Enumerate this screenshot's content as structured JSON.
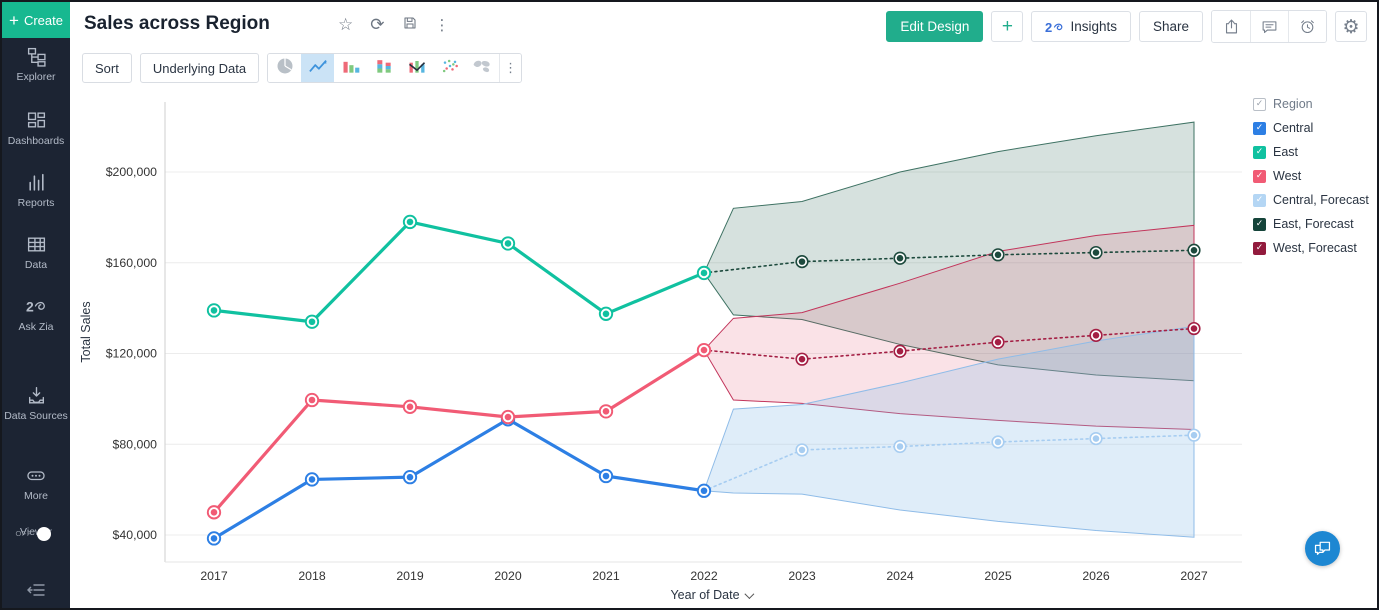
{
  "window": {
    "title": "Sales across Region"
  },
  "sidebar": {
    "create": {
      "label": "Create"
    },
    "items": [
      {
        "id": "explorer",
        "label": "Explorer"
      },
      {
        "id": "dashboards",
        "label": "Dashboards"
      },
      {
        "id": "reports",
        "label": "Reports"
      },
      {
        "id": "data",
        "label": "Data"
      },
      {
        "id": "ask-zia",
        "label": "Ask Zia"
      },
      {
        "id": "data-sources",
        "label": "Data Sources"
      },
      {
        "id": "more",
        "label": "More"
      }
    ],
    "viewer": {
      "label": "Viewer",
      "state": "OFF"
    }
  },
  "header": {
    "title": "Sales across Region",
    "title_icons": [
      "star",
      "refresh",
      "save",
      "kebab"
    ],
    "actions": {
      "edit_design": "Edit Design",
      "add": "+",
      "insights": "Insights",
      "share": "Share",
      "icon_buttons": [
        "export",
        "comment",
        "alarm",
        "settings"
      ]
    }
  },
  "toolbar": {
    "sort": "Sort",
    "underlying_data": "Underlying Data",
    "chart_types": [
      {
        "id": "pie",
        "selected": false
      },
      {
        "id": "line",
        "selected": true
      },
      {
        "id": "bar",
        "selected": false
      },
      {
        "id": "stacked-bar",
        "selected": false
      },
      {
        "id": "combo",
        "selected": false
      },
      {
        "id": "scatter",
        "selected": false
      },
      {
        "id": "map",
        "selected": false
      }
    ]
  },
  "legend": {
    "title": "Region",
    "items": [
      {
        "label": "Central",
        "color": "#2d7fe4"
      },
      {
        "label": "East",
        "color": "#10c1a0"
      },
      {
        "label": "West",
        "color": "#f15b75"
      },
      {
        "label": "Central, Forecast",
        "color": "#b4d6f4"
      },
      {
        "label": "East, Forecast",
        "color": "#15443a"
      },
      {
        "label": "West, Forecast",
        "color": "#921b3d"
      }
    ]
  },
  "chart_data": {
    "type": "line",
    "title": "Sales across Region",
    "xlabel": "Year of Date",
    "ylabel": "Total Sales",
    "x": [
      2017,
      2018,
      2019,
      2020,
      2021,
      2022,
      2023,
      2024,
      2025,
      2026,
      2027
    ],
    "yticks": [
      40000,
      80000,
      120000,
      160000,
      200000
    ],
    "ytick_labels": [
      "$40,000",
      "$80,000",
      "$120,000",
      "$160,000",
      "$200,000"
    ],
    "ylim": [
      20000,
      232000
    ],
    "grid": "horizontal",
    "legend_position": "right",
    "series": [
      {
        "name": "Central",
        "color": "#2d7fe4",
        "style": "solid",
        "years": [
          2017,
          2018,
          2019,
          2020,
          2021,
          2022
        ],
        "values": [
          38500,
          64500,
          65500,
          91000,
          66000,
          59500
        ]
      },
      {
        "name": "East",
        "color": "#10c1a0",
        "style": "solid",
        "years": [
          2017,
          2018,
          2019,
          2020,
          2021,
          2022
        ],
        "values": [
          139000,
          134000,
          178000,
          168500,
          137500,
          155500
        ]
      },
      {
        "name": "West",
        "color": "#f15b75",
        "style": "solid",
        "years": [
          2017,
          2018,
          2019,
          2020,
          2021,
          2022
        ],
        "values": [
          50000,
          99500,
          96500,
          92000,
          94500,
          121500
        ]
      },
      {
        "name": "Central, Forecast",
        "color": "#a7cdf1",
        "style": "dotted",
        "years": [
          2022,
          2023,
          2024,
          2025,
          2026,
          2027
        ],
        "values": [
          59500,
          77500,
          79000,
          81000,
          82500,
          84000
        ]
      },
      {
        "name": "East, Forecast",
        "color": "#1d4a3d",
        "style": "dotted",
        "years": [
          2022,
          2023,
          2024,
          2025,
          2026,
          2027
        ],
        "values": [
          155500,
          160500,
          162000,
          163500,
          164500,
          165500
        ]
      },
      {
        "name": "West, Forecast",
        "color": "#a41f44",
        "style": "dotted",
        "years": [
          2022,
          2023,
          2024,
          2025,
          2026,
          2027
        ],
        "values": [
          121500,
          117500,
          121000,
          125000,
          128000,
          131000
        ]
      }
    ],
    "bands": [
      {
        "name": "East, Forecast range",
        "edge": "#3e7263",
        "fill": "rgba(70,120,105,0.22)",
        "x": [
          2022,
          2022.3,
          2023,
          2024,
          2025,
          2026,
          2027
        ],
        "upper": [
          155500,
          184000,
          187000,
          200000,
          209000,
          216000,
          222000
        ],
        "lower": [
          155500,
          137000,
          135000,
          124000,
          115000,
          110500,
          108000
        ]
      },
      {
        "name": "West, Forecast range",
        "edge": "#c2355b",
        "fill": "rgba(225,85,115,0.17)",
        "x": [
          2022,
          2022.3,
          2023,
          2024,
          2025,
          2026,
          2027
        ],
        "upper": [
          121500,
          135500,
          138000,
          151000,
          165000,
          172000,
          176500
        ],
        "lower": [
          121500,
          99500,
          98000,
          93500,
          90500,
          88000,
          86500
        ]
      },
      {
        "name": "Central, Forecast range",
        "edge": "#8fbce8",
        "fill": "rgba(140,190,235,0.28)",
        "x": [
          2022,
          2022.3,
          2023,
          2024,
          2025,
          2026,
          2027
        ],
        "upper": [
          59500,
          95500,
          97500,
          107000,
          117500,
          125500,
          132000
        ],
        "lower": [
          59500,
          58500,
          58000,
          51000,
          46000,
          42000,
          39000
        ]
      }
    ]
  }
}
